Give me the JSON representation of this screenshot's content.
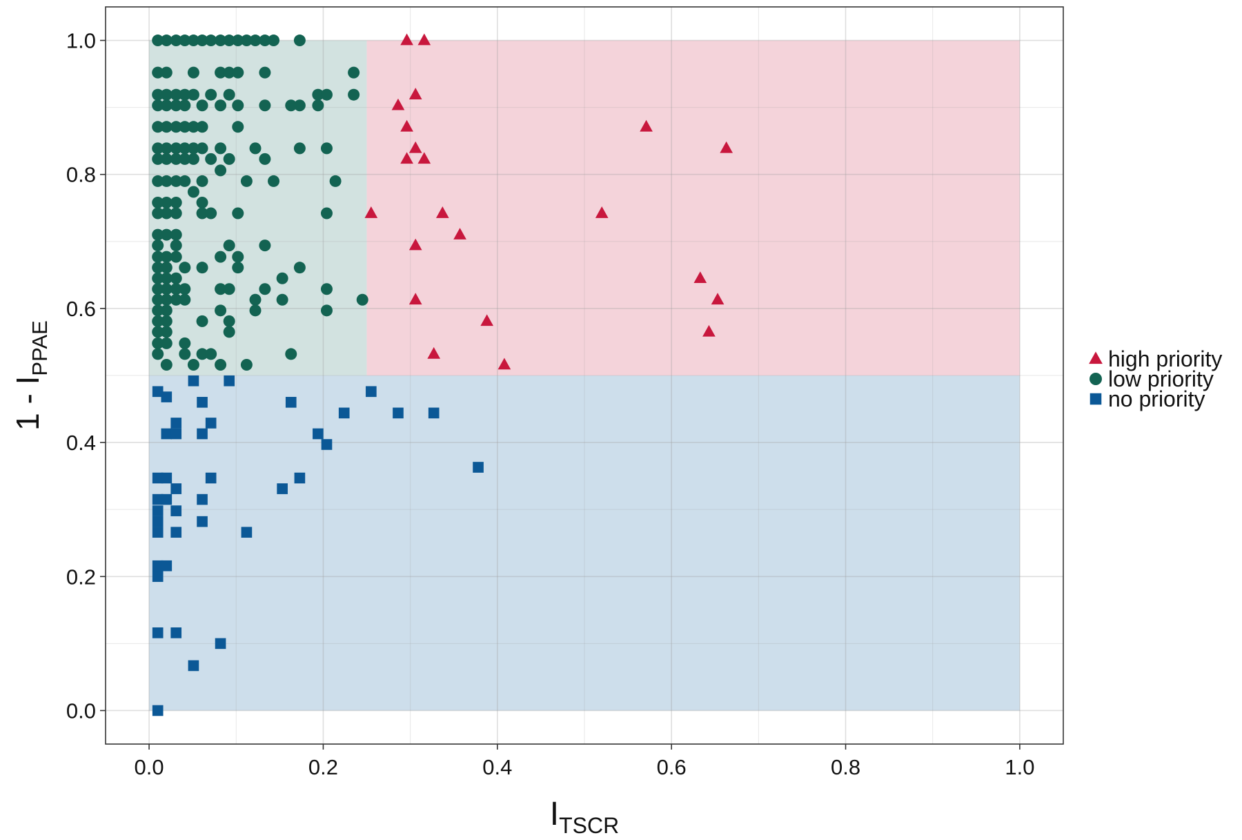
{
  "chart_data": {
    "type": "scatter",
    "xlim": [
      -0.05,
      1.05
    ],
    "ylim": [
      -0.05,
      1.05
    ],
    "x_ticks": [
      0.0,
      0.2,
      0.4,
      0.6,
      0.8,
      1.0
    ],
    "y_ticks": [
      0.0,
      0.2,
      0.4,
      0.6,
      0.8,
      1.0
    ],
    "x_tick_labels": [
      "0.0",
      "0.2",
      "0.4",
      "0.6",
      "0.8",
      "1.0"
    ],
    "y_tick_labels": [
      "0.0",
      "0.2",
      "0.4",
      "0.6",
      "0.8",
      "1.0"
    ],
    "xlabel": {
      "main": "I",
      "sub": "TSCR"
    },
    "ylabel": {
      "prefix": "1 - I",
      "sub": "PPAE"
    },
    "grid": true,
    "legend_position": "right",
    "regions": [
      {
        "name": "low-priority-region",
        "x": [
          0,
          0.25
        ],
        "y": [
          0.5,
          1.0
        ],
        "color": "#d2e2e0"
      },
      {
        "name": "high-priority-region",
        "x": [
          0.25,
          1.0
        ],
        "y": [
          0.5,
          1.0
        ],
        "color": "#f4d3da"
      },
      {
        "name": "no-priority-region",
        "x": [
          0,
          1.0
        ],
        "y": [
          0,
          0.5
        ],
        "color": "#cddeeb"
      }
    ],
    "series": [
      {
        "name": "high priority",
        "marker": "triangle",
        "color": "#c8173d",
        "points": [
          [
            0.296,
            1.0
          ],
          [
            0.316,
            1.0
          ],
          [
            0.306,
            0.919
          ],
          [
            0.286,
            0.903
          ],
          [
            0.296,
            0.871
          ],
          [
            0.306,
            0.839
          ],
          [
            0.296,
            0.823
          ],
          [
            0.316,
            0.823
          ],
          [
            0.255,
            0.742
          ],
          [
            0.337,
            0.742
          ],
          [
            0.357,
            0.71
          ],
          [
            0.306,
            0.694
          ],
          [
            0.306,
            0.613
          ],
          [
            0.388,
            0.581
          ],
          [
            0.327,
            0.532
          ],
          [
            0.408,
            0.516
          ],
          [
            0.571,
            0.871
          ],
          [
            0.663,
            0.839
          ],
          [
            0.52,
            0.742
          ],
          [
            0.633,
            0.645
          ],
          [
            0.653,
            0.613
          ],
          [
            0.643,
            0.565
          ]
        ]
      },
      {
        "name": "low priority",
        "marker": "circle",
        "color": "#136352",
        "points": [
          [
            0.01,
            1.0
          ],
          [
            0.02,
            1.0
          ],
          [
            0.031,
            1.0
          ],
          [
            0.041,
            1.0
          ],
          [
            0.051,
            1.0
          ],
          [
            0.061,
            1.0
          ],
          [
            0.071,
            1.0
          ],
          [
            0.082,
            1.0
          ],
          [
            0.092,
            1.0
          ],
          [
            0.102,
            1.0
          ],
          [
            0.112,
            1.0
          ],
          [
            0.122,
            1.0
          ],
          [
            0.133,
            1.0
          ],
          [
            0.143,
            1.0
          ],
          [
            0.173,
            1.0
          ],
          [
            0.01,
            0.952
          ],
          [
            0.02,
            0.952
          ],
          [
            0.051,
            0.952
          ],
          [
            0.082,
            0.952
          ],
          [
            0.092,
            0.952
          ],
          [
            0.102,
            0.952
          ],
          [
            0.133,
            0.952
          ],
          [
            0.235,
            0.952
          ],
          [
            0.01,
            0.919
          ],
          [
            0.02,
            0.919
          ],
          [
            0.031,
            0.919
          ],
          [
            0.041,
            0.919
          ],
          [
            0.051,
            0.919
          ],
          [
            0.071,
            0.919
          ],
          [
            0.092,
            0.919
          ],
          [
            0.194,
            0.919
          ],
          [
            0.204,
            0.919
          ],
          [
            0.235,
            0.919
          ],
          [
            0.01,
            0.903
          ],
          [
            0.02,
            0.903
          ],
          [
            0.031,
            0.903
          ],
          [
            0.041,
            0.903
          ],
          [
            0.061,
            0.903
          ],
          [
            0.082,
            0.903
          ],
          [
            0.102,
            0.903
          ],
          [
            0.133,
            0.903
          ],
          [
            0.163,
            0.903
          ],
          [
            0.173,
            0.903
          ],
          [
            0.194,
            0.903
          ],
          [
            0.01,
            0.871
          ],
          [
            0.02,
            0.871
          ],
          [
            0.031,
            0.871
          ],
          [
            0.041,
            0.871
          ],
          [
            0.051,
            0.871
          ],
          [
            0.061,
            0.871
          ],
          [
            0.102,
            0.871
          ],
          [
            0.01,
            0.839
          ],
          [
            0.02,
            0.839
          ],
          [
            0.031,
            0.839
          ],
          [
            0.041,
            0.839
          ],
          [
            0.051,
            0.839
          ],
          [
            0.061,
            0.839
          ],
          [
            0.082,
            0.839
          ],
          [
            0.122,
            0.839
          ],
          [
            0.173,
            0.839
          ],
          [
            0.204,
            0.839
          ],
          [
            0.01,
            0.823
          ],
          [
            0.02,
            0.823
          ],
          [
            0.031,
            0.823
          ],
          [
            0.041,
            0.823
          ],
          [
            0.051,
            0.823
          ],
          [
            0.071,
            0.823
          ],
          [
            0.092,
            0.823
          ],
          [
            0.133,
            0.823
          ],
          [
            0.082,
            0.806
          ],
          [
            0.01,
            0.79
          ],
          [
            0.02,
            0.79
          ],
          [
            0.031,
            0.79
          ],
          [
            0.041,
            0.79
          ],
          [
            0.061,
            0.79
          ],
          [
            0.112,
            0.79
          ],
          [
            0.143,
            0.79
          ],
          [
            0.214,
            0.79
          ],
          [
            0.051,
            0.774
          ],
          [
            0.01,
            0.758
          ],
          [
            0.02,
            0.758
          ],
          [
            0.031,
            0.758
          ],
          [
            0.061,
            0.758
          ],
          [
            0.01,
            0.742
          ],
          [
            0.02,
            0.742
          ],
          [
            0.031,
            0.742
          ],
          [
            0.061,
            0.742
          ],
          [
            0.071,
            0.742
          ],
          [
            0.102,
            0.742
          ],
          [
            0.204,
            0.742
          ],
          [
            0.01,
            0.71
          ],
          [
            0.02,
            0.71
          ],
          [
            0.031,
            0.71
          ],
          [
            0.01,
            0.694
          ],
          [
            0.031,
            0.694
          ],
          [
            0.092,
            0.694
          ],
          [
            0.133,
            0.694
          ],
          [
            0.01,
            0.677
          ],
          [
            0.02,
            0.677
          ],
          [
            0.031,
            0.677
          ],
          [
            0.082,
            0.677
          ],
          [
            0.102,
            0.677
          ],
          [
            0.01,
            0.661
          ],
          [
            0.02,
            0.661
          ],
          [
            0.041,
            0.661
          ],
          [
            0.061,
            0.661
          ],
          [
            0.102,
            0.661
          ],
          [
            0.173,
            0.661
          ],
          [
            0.01,
            0.645
          ],
          [
            0.02,
            0.645
          ],
          [
            0.031,
            0.645
          ],
          [
            0.153,
            0.645
          ],
          [
            0.01,
            0.629
          ],
          [
            0.02,
            0.629
          ],
          [
            0.031,
            0.629
          ],
          [
            0.041,
            0.629
          ],
          [
            0.082,
            0.629
          ],
          [
            0.092,
            0.629
          ],
          [
            0.133,
            0.629
          ],
          [
            0.204,
            0.629
          ],
          [
            0.01,
            0.613
          ],
          [
            0.02,
            0.613
          ],
          [
            0.031,
            0.613
          ],
          [
            0.041,
            0.613
          ],
          [
            0.122,
            0.613
          ],
          [
            0.153,
            0.613
          ],
          [
            0.245,
            0.613
          ],
          [
            0.01,
            0.597
          ],
          [
            0.02,
            0.597
          ],
          [
            0.082,
            0.597
          ],
          [
            0.122,
            0.597
          ],
          [
            0.204,
            0.597
          ],
          [
            0.01,
            0.581
          ],
          [
            0.02,
            0.581
          ],
          [
            0.061,
            0.581
          ],
          [
            0.092,
            0.581
          ],
          [
            0.01,
            0.565
          ],
          [
            0.02,
            0.565
          ],
          [
            0.092,
            0.565
          ],
          [
            0.01,
            0.548
          ],
          [
            0.02,
            0.548
          ],
          [
            0.041,
            0.548
          ],
          [
            0.01,
            0.532
          ],
          [
            0.041,
            0.532
          ],
          [
            0.061,
            0.532
          ],
          [
            0.071,
            0.532
          ],
          [
            0.163,
            0.532
          ],
          [
            0.02,
            0.516
          ],
          [
            0.051,
            0.516
          ],
          [
            0.082,
            0.516
          ],
          [
            0.112,
            0.516
          ]
        ]
      },
      {
        "name": "no priority",
        "marker": "square",
        "color": "#0b5896",
        "points": [
          [
            0.051,
            0.492
          ],
          [
            0.092,
            0.492
          ],
          [
            0.255,
            0.476
          ],
          [
            0.01,
            0.476
          ],
          [
            0.02,
            0.468
          ],
          [
            0.061,
            0.46
          ],
          [
            0.163,
            0.46
          ],
          [
            0.224,
            0.444
          ],
          [
            0.286,
            0.444
          ],
          [
            0.327,
            0.444
          ],
          [
            0.031,
            0.429
          ],
          [
            0.071,
            0.429
          ],
          [
            0.02,
            0.413
          ],
          [
            0.031,
            0.413
          ],
          [
            0.061,
            0.413
          ],
          [
            0.194,
            0.413
          ],
          [
            0.204,
            0.397
          ],
          [
            0.378,
            0.363
          ],
          [
            0.01,
            0.347
          ],
          [
            0.02,
            0.347
          ],
          [
            0.071,
            0.347
          ],
          [
            0.173,
            0.347
          ],
          [
            0.031,
            0.331
          ],
          [
            0.153,
            0.331
          ],
          [
            0.01,
            0.315
          ],
          [
            0.02,
            0.315
          ],
          [
            0.061,
            0.315
          ],
          [
            0.01,
            0.298
          ],
          [
            0.031,
            0.298
          ],
          [
            0.01,
            0.282
          ],
          [
            0.061,
            0.282
          ],
          [
            0.01,
            0.266
          ],
          [
            0.031,
            0.266
          ],
          [
            0.112,
            0.266
          ],
          [
            0.01,
            0.216
          ],
          [
            0.02,
            0.216
          ],
          [
            0.01,
            0.2
          ],
          [
            0.01,
            0.116
          ],
          [
            0.031,
            0.116
          ],
          [
            0.082,
            0.1
          ],
          [
            0.051,
            0.067
          ],
          [
            0.01,
            0.0
          ]
        ]
      }
    ]
  }
}
